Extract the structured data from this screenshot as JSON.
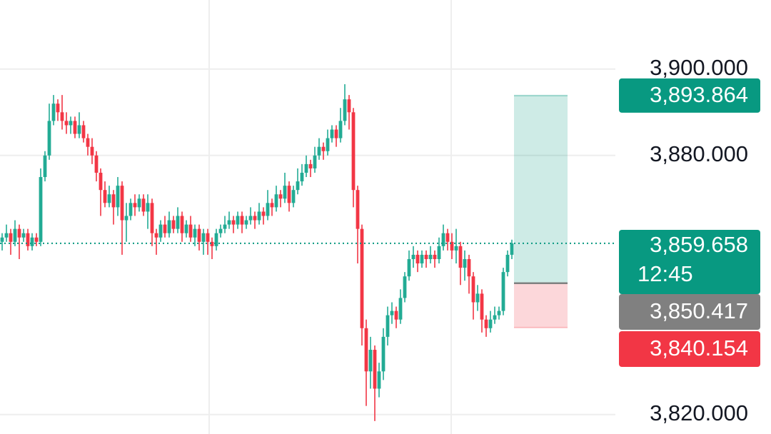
{
  "chart_data": {
    "type": "candlestick",
    "ylim": [
      3815.5,
      3916.0
    ],
    "yticks": [
      {
        "value": 3820,
        "label": "3,820.000"
      },
      {
        "value": 3880,
        "label": "3,880.000"
      },
      {
        "value": 3900,
        "label": "3,900.000"
      }
    ],
    "grid": true,
    "up_color": "#22ab94",
    "down_color": "#f23645",
    "open": [
      3860,
      3861,
      3862,
      3860,
      3863,
      3861,
      3862,
      3859,
      3861,
      3860,
      3875,
      3880,
      3888,
      3892,
      3890,
      3888,
      3887,
      3888,
      3885,
      3887,
      3884,
      3882,
      3880,
      3876,
      3872,
      3869,
      3871,
      3868,
      3873,
      3865,
      3866,
      3869,
      3868,
      3870,
      3867,
      3869,
      3862,
      3861,
      3864,
      3862,
      3865,
      3863,
      3866,
      3862,
      3864,
      3861,
      3863,
      3860,
      3862,
      3860,
      3859,
      3862,
      3863,
      3864,
      3865,
      3864,
      3866,
      3864,
      3865,
      3866,
      3865,
      3867,
      3866,
      3869,
      3868,
      3871,
      3870,
      3873,
      3869,
      3872,
      3874,
      3876,
      3878,
      3877,
      3880,
      3882,
      3881,
      3884,
      3886,
      3884,
      3888,
      3893,
      3890,
      3872,
      3863,
      3840,
      3830,
      3835,
      3826,
      3830,
      3838,
      3843,
      3844,
      3842,
      3847,
      3852,
      3856,
      3857,
      3855,
      3857,
      3856,
      3857,
      3856,
      3859,
      3862,
      3860,
      3858,
      3859,
      3854,
      3856,
      3852,
      3846,
      3848,
      3842,
      3840,
      3842,
      3843,
      3844,
      3853,
      3857
    ],
    "high": [
      3862,
      3864,
      3863,
      3865,
      3864,
      3863,
      3863,
      3862,
      3862,
      3877,
      3881,
      3892,
      3894,
      3893,
      3894,
      3890,
      3889,
      3889,
      3890,
      3888,
      3885,
      3884,
      3881,
      3877,
      3874,
      3873,
      3872,
      3875,
      3874,
      3869,
      3870,
      3871,
      3871,
      3871,
      3871,
      3870,
      3863,
      3865,
      3866,
      3867,
      3866,
      3868,
      3867,
      3865,
      3866,
      3864,
      3864,
      3863,
      3863,
      3861,
      3863,
      3864,
      3866,
      3867,
      3866,
      3867,
      3867,
      3866,
      3868,
      3867,
      3869,
      3868,
      3872,
      3870,
      3873,
      3872,
      3876,
      3874,
      3873,
      3877,
      3878,
      3880,
      3879,
      3882,
      3884,
      3883,
      3886,
      3887,
      3887,
      3891,
      3896.5,
      3894,
      3891,
      3873,
      3864,
      3842,
      3838,
      3836,
      3832,
      3840,
      3845,
      3846,
      3845,
      3849,
      3853,
      3858,
      3859,
      3858,
      3858,
      3858,
      3859,
      3858,
      3861,
      3864,
      3863,
      3862,
      3863,
      3860,
      3858,
      3857,
      3853,
      3850,
      3849,
      3843,
      3844,
      3845,
      3845,
      3854,
      3858,
      3860.5
    ],
    "low": [
      3858,
      3860,
      3857,
      3859,
      3856,
      3860,
      3858,
      3858,
      3859,
      3859,
      3874,
      3879,
      3887,
      3888,
      3886,
      3885,
      3885,
      3884,
      3884,
      3883,
      3880,
      3878,
      3874,
      3866,
      3868,
      3868,
      3864,
      3866,
      3857,
      3860,
      3865,
      3866,
      3867,
      3866,
      3863,
      3859,
      3857,
      3860,
      3861,
      3861,
      3862,
      3862,
      3860,
      3861,
      3860,
      3859,
      3858,
      3857,
      3857,
      3856,
      3858,
      3861,
      3862,
      3863,
      3862,
      3863,
      3862,
      3863,
      3864,
      3863,
      3864,
      3864,
      3865,
      3866,
      3867,
      3868,
      3869,
      3867,
      3868,
      3871,
      3873,
      3875,
      3875,
      3876,
      3879,
      3879,
      3880,
      3883,
      3882,
      3883,
      3887,
      3886,
      3868,
      3855,
      3836,
      3822,
      3826,
      3818.5,
      3824,
      3828,
      3836,
      3841,
      3840,
      3841,
      3846,
      3851,
      3854,
      3853,
      3854,
      3854,
      3855,
      3854,
      3855,
      3858,
      3858,
      3856,
      3855,
      3850,
      3851,
      3848,
      3842,
      3844,
      3839,
      3838,
      3839,
      3841,
      3842,
      3843,
      3852,
      3856
    ],
    "close": [
      3861,
      3862,
      3860,
      3863,
      3861,
      3862,
      3859,
      3861,
      3860,
      3875,
      3880,
      3888,
      3892,
      3890,
      3888,
      3887,
      3888,
      3885,
      3887,
      3884,
      3882,
      3880,
      3876,
      3872,
      3869,
      3871,
      3868,
      3873,
      3865,
      3866,
      3869,
      3868,
      3870,
      3867,
      3869,
      3862,
      3861,
      3864,
      3862,
      3865,
      3863,
      3866,
      3862,
      3864,
      3861,
      3863,
      3860,
      3862,
      3860,
      3859,
      3862,
      3863,
      3864,
      3865,
      3864,
      3866,
      3864,
      3865,
      3866,
      3865,
      3867,
      3866,
      3869,
      3868,
      3871,
      3870,
      3873,
      3869,
      3872,
      3874,
      3876,
      3878,
      3877,
      3880,
      3882,
      3881,
      3884,
      3886,
      3884,
      3888,
      3893,
      3890,
      3872,
      3863,
      3840,
      3830,
      3835,
      3826,
      3830,
      3838,
      3843,
      3844,
      3842,
      3847,
      3852,
      3856,
      3857,
      3855,
      3857,
      3856,
      3857,
      3856,
      3859,
      3862,
      3860,
      3858,
      3859,
      3854,
      3856,
      3852,
      3846,
      3848,
      3842,
      3840,
      3842,
      3843,
      3844,
      3853,
      3857,
      3859.658
    ],
    "last_price": {
      "value": 3859.658,
      "label": "3,859.658",
      "countdown": "12:45",
      "color": "#089981"
    },
    "position": {
      "target": {
        "value": 3893.864,
        "label": "3,893.864",
        "color": "#089981"
      },
      "entry": {
        "value": 3850.417,
        "label": "3,850.417",
        "color": "#808080"
      },
      "stop": {
        "value": 3840.154,
        "label": "3,840.154",
        "color": "#f23645"
      }
    }
  }
}
